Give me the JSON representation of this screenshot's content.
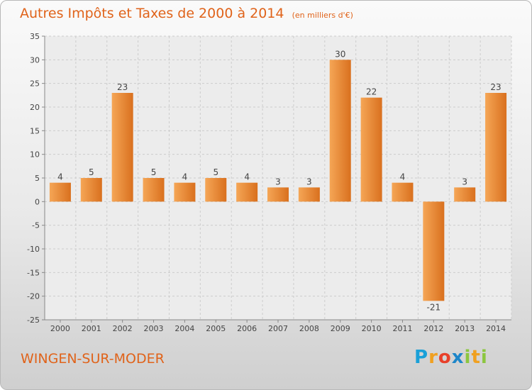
{
  "title": "Autres Impôts et Taxes de 2000 à 2014",
  "unit": "(en milliers d'€)",
  "commune": "WINGEN-SUR-MODER",
  "logo": "Proxiti",
  "colors": {
    "accent": "#e0631a",
    "bar_light": "#f5a656",
    "bar_dark": "#d9701e"
  },
  "chart_data": {
    "type": "bar",
    "categories": [
      "2000",
      "2001",
      "2002",
      "2003",
      "2004",
      "2005",
      "2006",
      "2007",
      "2008",
      "2009",
      "2010",
      "2011",
      "2012",
      "2013",
      "2014"
    ],
    "values": [
      4,
      5,
      23,
      5,
      4,
      5,
      4,
      3,
      3,
      30,
      22,
      4,
      -21,
      3,
      23
    ],
    "ylim": [
      -25,
      35
    ],
    "yticks": [
      -25,
      -20,
      -15,
      -10,
      -5,
      0,
      5,
      10,
      15,
      20,
      25,
      30,
      35
    ],
    "grid": true,
    "data_labels": true
  }
}
